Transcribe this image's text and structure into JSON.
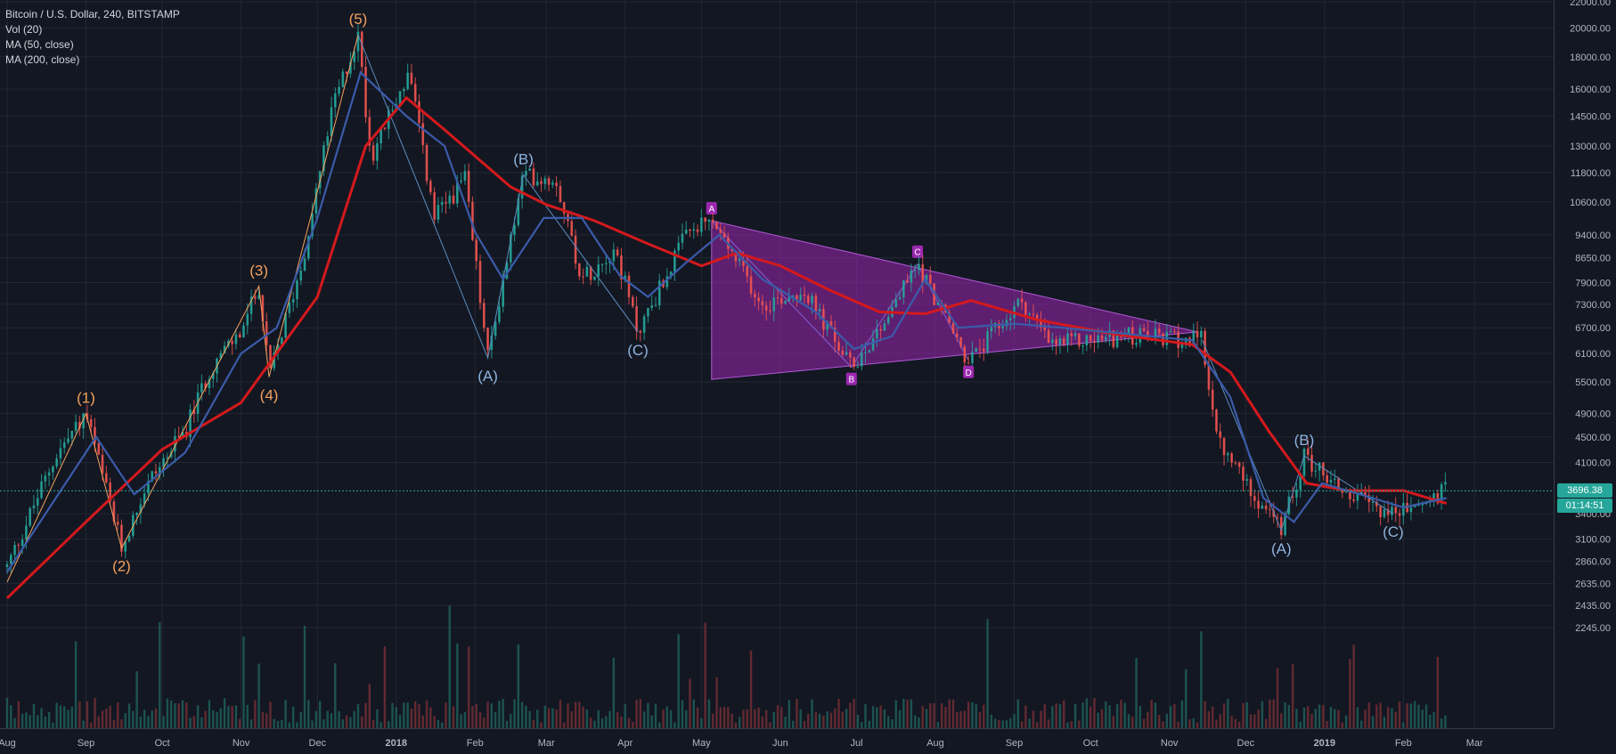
{
  "legend": {
    "symbol_line": "Bitcoin / U.S. Dollar, 240, BITSTAMP",
    "vol": "Vol (20)",
    "ma50": "MA (50, close)",
    "ma200": "MA (200, close)"
  },
  "current": {
    "price_label": "3696.38",
    "countdown": "01:14:51",
    "color": "#26a69a"
  },
  "colors": {
    "background": "#131722",
    "grid": "#232733",
    "axis_text": "#b2b5be",
    "ma50": "#3b5ba9",
    "ma200": "#d4191c",
    "up_candle": "#26a69a",
    "down_candle": "#ef5350",
    "wave_orange": "#f5a25d",
    "wave_blue": "#8fb4de",
    "triangle_fill": "#9c27b0",
    "triangle_line": "#b05ad6",
    "triangle_label_bg": "#9c27b0"
  },
  "chart_data": {
    "type": "candlestick",
    "title": "Bitcoin / U.S. Dollar, 240, BITSTAMP",
    "price_ticks": [
      "22000.00",
      "20000.00",
      "18000.00",
      "16000.00",
      "14500.00",
      "13000.00",
      "11800.00",
      "10600.00",
      "9400.00",
      "8650.00",
      "7900.00",
      "7300.00",
      "6700.00",
      "6100.00",
      "5500.00",
      "4900.00",
      "4500.00",
      "4100.00",
      "3400.00",
      "3100.00",
      "2860.00",
      "2635.00",
      "2435.00",
      "2245.00"
    ],
    "time_ticks": [
      "Aug",
      "Sep",
      "Oct",
      "Nov",
      "Dec",
      "2018",
      "Feb",
      "Mar",
      "Apr",
      "May",
      "Jun",
      "Jul",
      "Aug",
      "Sep",
      "Oct",
      "Nov",
      "Dec",
      "2019",
      "Feb",
      "Mar"
    ],
    "scale": "log",
    "ylim": [
      2245,
      22000
    ],
    "x_range": [
      "2017-08-01",
      "2019-03-01"
    ],
    "price_path": [
      [
        "2017-08-01",
        2800
      ],
      [
        "2017-08-20",
        4200
      ],
      [
        "2017-09-01",
        4900
      ],
      [
        "2017-09-15",
        3000
      ],
      [
        "2017-09-25",
        3800
      ],
      [
        "2017-10-10",
        4600
      ],
      [
        "2017-10-20",
        5800
      ],
      [
        "2017-11-01",
        6600
      ],
      [
        "2017-11-08",
        7800
      ],
      [
        "2017-11-12",
        5600
      ],
      [
        "2017-11-25",
        8500
      ],
      [
        "2017-12-07",
        15000
      ],
      [
        "2017-12-17",
        19500
      ],
      [
        "2017-12-22",
        12500
      ],
      [
        "2018-01-06",
        17000
      ],
      [
        "2018-01-16",
        10000
      ],
      [
        "2018-01-28",
        11500
      ],
      [
        "2018-02-06",
        6000
      ],
      [
        "2018-02-20",
        11700
      ],
      [
        "2018-03-05",
        11500
      ],
      [
        "2018-03-15",
        8000
      ],
      [
        "2018-03-28",
        9000
      ],
      [
        "2018-04-06",
        6600
      ],
      [
        "2018-04-25",
        9400
      ],
      [
        "2018-05-05",
        9900
      ],
      [
        "2018-05-25",
        7300
      ],
      [
        "2018-06-10",
        7700
      ],
      [
        "2018-06-29",
        5800
      ],
      [
        "2018-07-10",
        6700
      ],
      [
        "2018-07-25",
        8450
      ],
      [
        "2018-08-14",
        5900
      ],
      [
        "2018-09-04",
        7400
      ],
      [
        "2018-09-15",
        6300
      ],
      [
        "2018-10-15",
        6500
      ],
      [
        "2018-11-14",
        6400
      ],
      [
        "2018-11-20",
        4400
      ],
      [
        "2018-12-15",
        3200
      ],
      [
        "2018-12-24",
        4200
      ],
      [
        "2019-01-10",
        3650
      ],
      [
        "2019-01-28",
        3400
      ],
      [
        "2019-02-10",
        3550
      ],
      [
        "2019-02-18",
        3700
      ]
    ],
    "ma50": [
      [
        "2017-08-01",
        2750
      ],
      [
        "2017-09-05",
        4500
      ],
      [
        "2017-09-20",
        3650
      ],
      [
        "2017-10-10",
        4250
      ],
      [
        "2017-11-01",
        6100
      ],
      [
        "2017-11-15",
        6700
      ],
      [
        "2017-12-01",
        10000
      ],
      [
        "2017-12-18",
        17000
      ],
      [
        "2018-01-05",
        14500
      ],
      [
        "2018-01-20",
        13000
      ],
      [
        "2018-02-01",
        9500
      ],
      [
        "2018-02-12",
        8000
      ],
      [
        "2018-02-28",
        10000
      ],
      [
        "2018-03-15",
        10000
      ],
      [
        "2018-03-30",
        8100
      ],
      [
        "2018-04-10",
        7500
      ],
      [
        "2018-04-25",
        8500
      ],
      [
        "2018-05-08",
        9400
      ],
      [
        "2018-05-25",
        8000
      ],
      [
        "2018-06-15",
        7100
      ],
      [
        "2018-06-30",
        6200
      ],
      [
        "2018-07-15",
        6500
      ],
      [
        "2018-07-28",
        8000
      ],
      [
        "2018-08-10",
        6700
      ],
      [
        "2018-09-01",
        6800
      ],
      [
        "2018-09-20",
        6700
      ],
      [
        "2018-11-10",
        6400
      ],
      [
        "2018-11-25",
        5200
      ],
      [
        "2018-12-08",
        3600
      ],
      [
        "2018-12-20",
        3300
      ],
      [
        "2018-12-31",
        3800
      ],
      [
        "2019-01-15",
        3650
      ],
      [
        "2019-02-01",
        3480
      ],
      [
        "2019-02-18",
        3600
      ]
    ],
    "ma200": [
      [
        "2017-08-01",
        2500
      ],
      [
        "2017-09-01",
        3300
      ],
      [
        "2017-10-01",
        4300
      ],
      [
        "2017-11-01",
        5100
      ],
      [
        "2017-12-01",
        7500
      ],
      [
        "2017-12-20",
        13000
      ],
      [
        "2018-01-05",
        15500
      ],
      [
        "2018-01-20",
        13800
      ],
      [
        "2018-02-15",
        11200
      ],
      [
        "2018-03-01",
        10500
      ],
      [
        "2018-03-20",
        9900
      ],
      [
        "2018-04-10",
        9100
      ],
      [
        "2018-05-01",
        8400
      ],
      [
        "2018-05-15",
        8800
      ],
      [
        "2018-06-01",
        8400
      ],
      [
        "2018-06-20",
        7700
      ],
      [
        "2018-07-10",
        7100
      ],
      [
        "2018-07-28",
        7050
      ],
      [
        "2018-08-15",
        7400
      ],
      [
        "2018-09-10",
        6900
      ],
      [
        "2018-10-10",
        6550
      ],
      [
        "2018-11-10",
        6300
      ],
      [
        "2018-11-25",
        5700
      ],
      [
        "2018-12-10",
        4600
      ],
      [
        "2018-12-25",
        3800
      ],
      [
        "2019-01-10",
        3700
      ],
      [
        "2019-02-01",
        3700
      ],
      [
        "2019-02-18",
        3530
      ]
    ],
    "wave_labels": [
      {
        "text": "(1)",
        "date": "2017-09-01",
        "price": 4900,
        "color": "orange",
        "pos": "above"
      },
      {
        "text": "(2)",
        "date": "2017-09-15",
        "price": 3000,
        "color": "orange",
        "pos": "below"
      },
      {
        "text": "(3)",
        "date": "2017-11-08",
        "price": 7800,
        "color": "orange",
        "pos": "above"
      },
      {
        "text": "(4)",
        "date": "2017-11-12",
        "price": 5600,
        "color": "orange",
        "pos": "below"
      },
      {
        "text": "(5)",
        "date": "2017-12-17",
        "price": 19500,
        "color": "orange",
        "pos": "above"
      },
      {
        "text": "(A)",
        "date": "2018-02-06",
        "price": 6000,
        "color": "blue",
        "pos": "below"
      },
      {
        "text": "(B)",
        "date": "2018-02-20",
        "price": 11700,
        "color": "blue",
        "pos": "above"
      },
      {
        "text": "(C)",
        "date": "2018-04-06",
        "price": 6600,
        "color": "blue",
        "pos": "below"
      },
      {
        "text": "(A)",
        "date": "2018-12-15",
        "price": 3200,
        "color": "blue",
        "pos": "below"
      },
      {
        "text": "(B)",
        "date": "2018-12-24",
        "price": 4200,
        "color": "blue",
        "pos": "above"
      },
      {
        "text": "(C)",
        "date": "2019-01-28",
        "price": 3400,
        "color": "blue",
        "pos": "below"
      }
    ],
    "triangle": {
      "points": [
        {
          "label": "A",
          "date": "2018-05-05",
          "price": 9900
        },
        {
          "label": "B",
          "date": "2018-06-29",
          "price": 5800
        },
        {
          "label": "C",
          "date": "2018-07-25",
          "price": 8450
        },
        {
          "label": "D",
          "date": "2018-08-14",
          "price": 5950
        }
      ],
      "apex": {
        "date": "2018-11-12",
        "price": 6600
      },
      "base_bottom": {
        "date": "2018-05-05",
        "price": 5550
      }
    },
    "current_price": 3696.38
  }
}
